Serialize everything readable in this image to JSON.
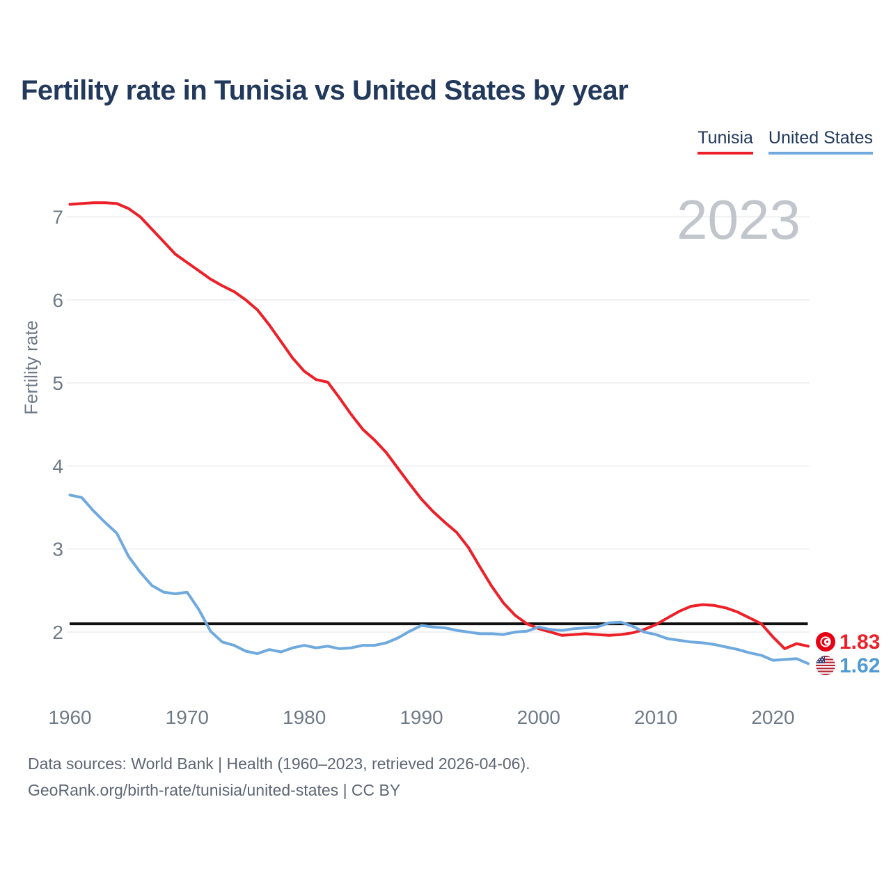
{
  "title": "Fertility rate in Tunisia vs United States by year",
  "watermark": "2023",
  "legend": {
    "items": [
      {
        "label": "Tunisia",
        "color": "#ec2028"
      },
      {
        "label": "United States",
        "color": "#6fa9de"
      }
    ]
  },
  "chart_data": {
    "type": "line",
    "title": "Fertility rate in Tunisia vs United States by year",
    "xlabel": "",
    "ylabel": "Fertility rate",
    "x_ticks": [
      1960,
      1970,
      1980,
      1990,
      2000,
      2010,
      2020
    ],
    "y_ticks": [
      7,
      6,
      5,
      4,
      3,
      2
    ],
    "xlim": [
      1960,
      2023
    ],
    "ylim": [
      1.5,
      7.3
    ],
    "grid": "horizontal",
    "legend_position": "top-right",
    "threshold": {
      "value": 2.1,
      "color": "#111111"
    },
    "x": [
      1960,
      1961,
      1962,
      1963,
      1964,
      1965,
      1966,
      1967,
      1968,
      1969,
      1970,
      1971,
      1972,
      1973,
      1974,
      1975,
      1976,
      1977,
      1978,
      1979,
      1980,
      1981,
      1982,
      1983,
      1984,
      1985,
      1986,
      1987,
      1988,
      1989,
      1990,
      1991,
      1992,
      1993,
      1994,
      1995,
      1996,
      1997,
      1998,
      1999,
      2000,
      2001,
      2002,
      2003,
      2004,
      2005,
      2006,
      2007,
      2008,
      2009,
      2010,
      2011,
      2012,
      2013,
      2014,
      2015,
      2016,
      2017,
      2018,
      2019,
      2020,
      2021,
      2022,
      2023
    ],
    "series": [
      {
        "name": "Tunisia",
        "color": "#ec2028",
        "end_label": "1.83",
        "end_label_color": "#ec2028",
        "values": [
          7.15,
          7.16,
          7.17,
          7.17,
          7.16,
          7.1,
          7.0,
          6.85,
          6.7,
          6.55,
          6.45,
          6.35,
          6.25,
          6.17,
          6.1,
          6.0,
          5.88,
          5.7,
          5.5,
          5.3,
          5.14,
          5.04,
          5.01,
          4.82,
          4.62,
          4.44,
          4.31,
          4.16,
          3.97,
          3.78,
          3.6,
          3.45,
          3.32,
          3.2,
          3.02,
          2.78,
          2.55,
          2.35,
          2.2,
          2.1,
          2.04,
          2.0,
          1.96,
          1.97,
          1.98,
          1.97,
          1.96,
          1.97,
          1.99,
          2.03,
          2.09,
          2.17,
          2.25,
          2.31,
          2.33,
          2.32,
          2.29,
          2.24,
          2.17,
          2.1,
          1.94,
          1.8,
          1.86,
          1.83
        ]
      },
      {
        "name": "United States",
        "color": "#6fa9de",
        "end_label": "1.62",
        "end_label_color": "#4e9ad4",
        "values": [
          3.65,
          3.62,
          3.46,
          3.32,
          3.19,
          2.91,
          2.72,
          2.56,
          2.48,
          2.46,
          2.48,
          2.27,
          2.01,
          1.88,
          1.84,
          1.77,
          1.74,
          1.79,
          1.76,
          1.81,
          1.84,
          1.81,
          1.83,
          1.8,
          1.81,
          1.84,
          1.84,
          1.87,
          1.93,
          2.01,
          2.08,
          2.06,
          2.05,
          2.02,
          2.0,
          1.98,
          1.98,
          1.97,
          2.0,
          2.01,
          2.06,
          2.03,
          2.02,
          2.04,
          2.05,
          2.06,
          2.11,
          2.12,
          2.07,
          2.0,
          1.97,
          1.92,
          1.9,
          1.88,
          1.87,
          1.85,
          1.82,
          1.79,
          1.75,
          1.72,
          1.66,
          1.67,
          1.68,
          1.62
        ]
      }
    ]
  },
  "footer": {
    "line1": "Data sources: World Bank | Health (1960–2023, retrieved 2026-04-06).",
    "line2": "GeoRank.org/birth-rate/tunisia/united-states | CC BY"
  }
}
